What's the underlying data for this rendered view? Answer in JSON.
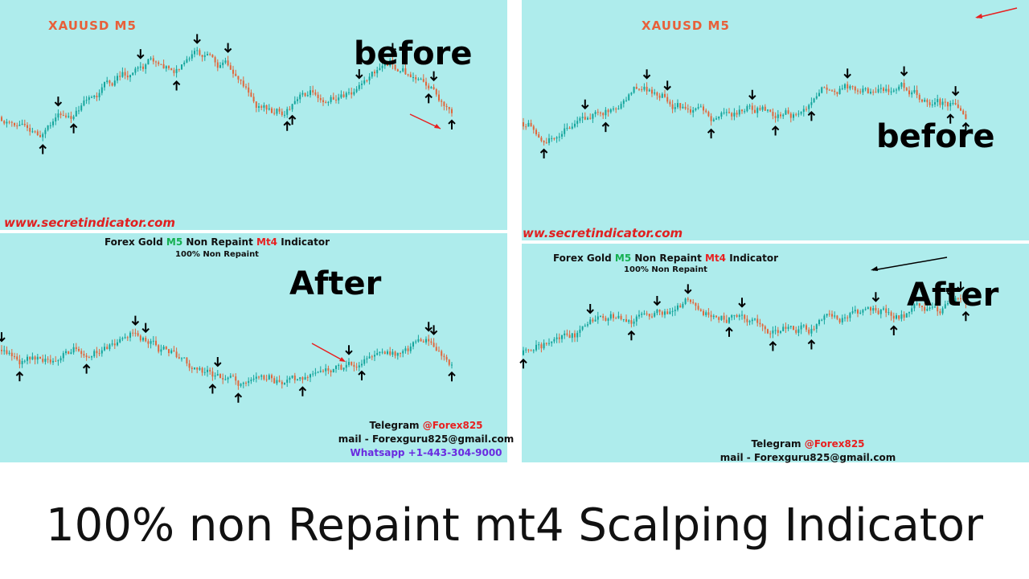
{
  "panels": [
    {
      "symbol": "XAUUSD  M5",
      "label": "before",
      "watermark": "www.secretindicator.com"
    },
    {
      "symbol": "XAUUSD  M5",
      "label": "before",
      "watermark": "ww.secretindicator.com"
    },
    {
      "header": [
        "Forex Gold ",
        "M5",
        " Non Repaint ",
        "Mt4",
        " Indicator"
      ],
      "subheader": "100% Non Repaint",
      "label": "After",
      "telegram": [
        "Telegram ",
        "@Forex825"
      ],
      "mail": "mail - Forexguru825@gmail.com",
      "whatsapp": "Whatsapp +1-443-304-9000"
    },
    {
      "header": [
        "Forex Gold ",
        "M5",
        " Non Repaint ",
        "Mt4",
        " Indicator"
      ],
      "subheader": "100% Non Repaint",
      "label": "After",
      "telegram": [
        "Telegram ",
        "@Forex825"
      ],
      "mail": "mail - Forexguru825@gmail.com"
    }
  ],
  "caption": "100% non Repaint mt4 Scalping Indicator"
}
